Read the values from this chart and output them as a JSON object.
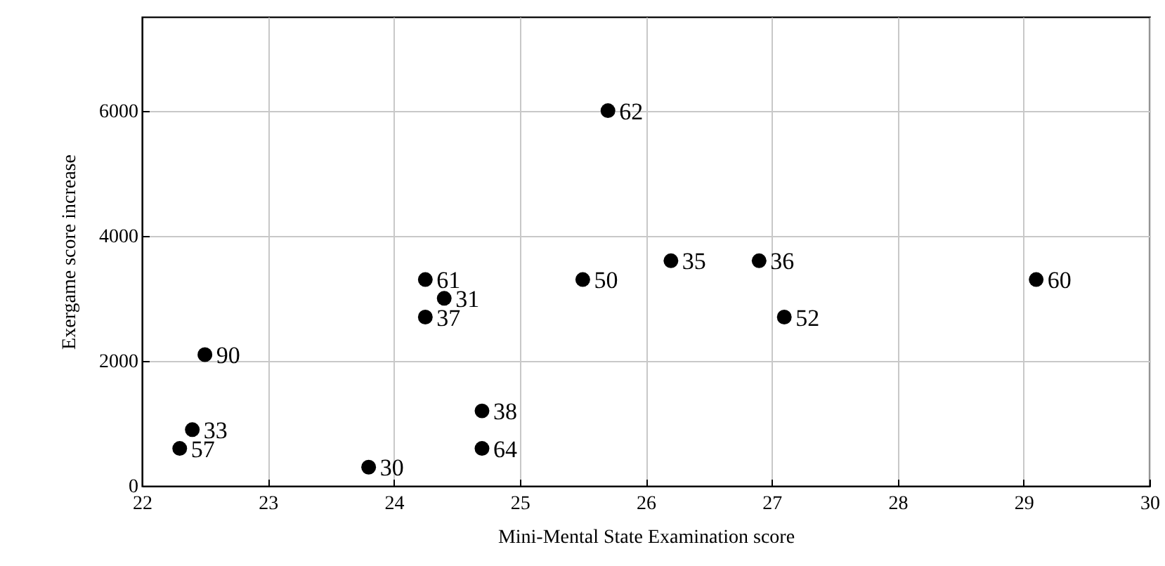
{
  "chart_data": {
    "type": "scatter",
    "xlabel": "Mini-Mental State Examination score",
    "ylabel": "Exergame score increase",
    "x": [
      25.7,
      25.5,
      26.2,
      26.9,
      27.1,
      29.1,
      24.25,
      24.4,
      24.25,
      22.5,
      22.4,
      22.3,
      23.8,
      24.7,
      24.7
    ],
    "series": [
      {
        "color": "#000000",
        "values": [
          6000,
          3300,
          3600,
          3600,
          2700,
          3300,
          3300,
          3000,
          2700,
          2100,
          900,
          600,
          300,
          1200,
          600
        ]
      }
    ],
    "xlim": [
      22,
      30
    ],
    "xticks": [
      22,
      23,
      24,
      25,
      26,
      27,
      28,
      29,
      30
    ],
    "ylim": [
      0,
      7500
    ],
    "yticks": [
      0,
      2000,
      4000,
      6000
    ],
    "grid": true,
    "marker": "circle",
    "annotations": [
      {
        "text": "62",
        "x": 25.7,
        "y": 6000
      },
      {
        "text": "50",
        "x": 25.5,
        "y": 3300
      },
      {
        "text": "35",
        "x": 26.2,
        "y": 3600
      },
      {
        "text": "36",
        "x": 26.9,
        "y": 3600
      },
      {
        "text": "52",
        "x": 27.1,
        "y": 2700
      },
      {
        "text": "60",
        "x": 29.1,
        "y": 3300
      },
      {
        "text": "61",
        "x": 24.25,
        "y": 3300
      },
      {
        "text": "31",
        "x": 24.4,
        "y": 3000
      },
      {
        "text": "37",
        "x": 24.25,
        "y": 2700
      },
      {
        "text": "90",
        "x": 22.5,
        "y": 2100
      },
      {
        "text": "33",
        "x": 22.4,
        "y": 900
      },
      {
        "text": "57",
        "x": 22.3,
        "y": 600
      },
      {
        "text": "30",
        "x": 23.8,
        "y": 300
      },
      {
        "text": "38",
        "x": 24.7,
        "y": 1200
      },
      {
        "text": "64",
        "x": 24.7,
        "y": 600
      }
    ]
  }
}
